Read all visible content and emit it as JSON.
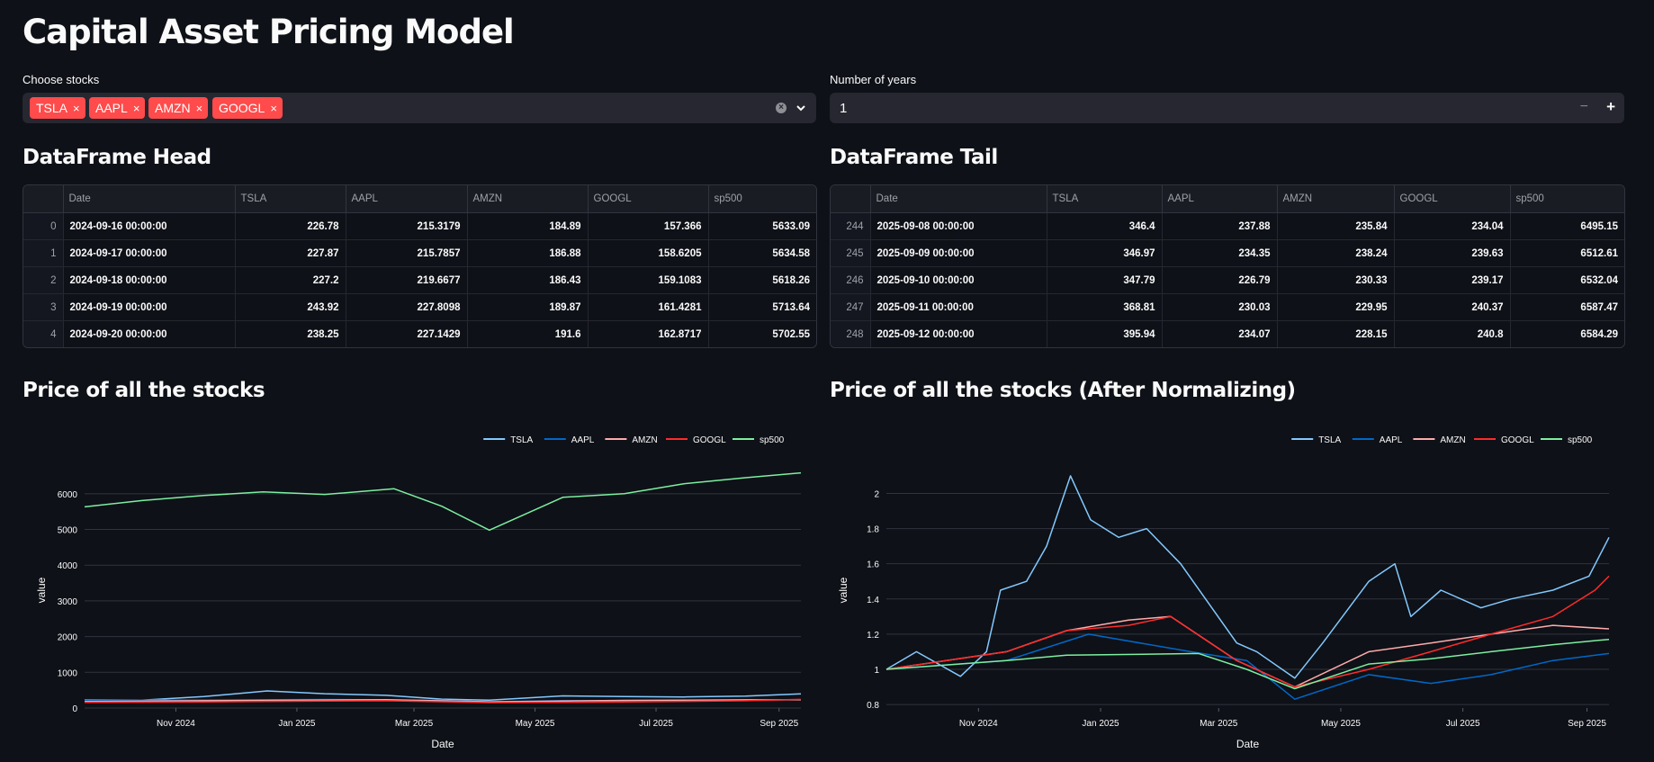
{
  "title": "Capital Asset Pricing Model",
  "stocks_field": {
    "label": "Choose stocks",
    "selected": [
      "TSLA",
      "AAPL",
      "AMZN",
      "GOOGL"
    ],
    "remove_glyph": "×"
  },
  "years_field": {
    "label": "Number of years",
    "value": "1",
    "minus": "−",
    "plus": "+"
  },
  "head_table": {
    "heading": "DataFrame Head",
    "columns": [
      "Date",
      "TSLA",
      "AAPL",
      "AMZN",
      "GOOGL",
      "sp500"
    ],
    "rows": [
      {
        "index": "0",
        "date": "2024-09-16 00:00:00",
        "tsla": "226.78",
        "aapl": "215.3179",
        "amzn": "184.89",
        "googl": "157.366",
        "sp500": "5633.09"
      },
      {
        "index": "1",
        "date": "2024-09-17 00:00:00",
        "tsla": "227.87",
        "aapl": "215.7857",
        "amzn": "186.88",
        "googl": "158.6205",
        "sp500": "5634.58"
      },
      {
        "index": "2",
        "date": "2024-09-18 00:00:00",
        "tsla": "227.2",
        "aapl": "219.6677",
        "amzn": "186.43",
        "googl": "159.1083",
        "sp500": "5618.26"
      },
      {
        "index": "3",
        "date": "2024-09-19 00:00:00",
        "tsla": "243.92",
        "aapl": "227.8098",
        "amzn": "189.87",
        "googl": "161.4281",
        "sp500": "5713.64"
      },
      {
        "index": "4",
        "date": "2024-09-20 00:00:00",
        "tsla": "238.25",
        "aapl": "227.1429",
        "amzn": "191.6",
        "googl": "162.8717",
        "sp500": "5702.55"
      }
    ]
  },
  "tail_table": {
    "heading": "DataFrame Tail",
    "columns": [
      "Date",
      "TSLA",
      "AAPL",
      "AMZN",
      "GOOGL",
      "sp500"
    ],
    "rows": [
      {
        "index": "244",
        "date": "2025-09-08 00:00:00",
        "tsla": "346.4",
        "aapl": "237.88",
        "amzn": "235.84",
        "googl": "234.04",
        "sp500": "6495.15"
      },
      {
        "index": "245",
        "date": "2025-09-09 00:00:00",
        "tsla": "346.97",
        "aapl": "234.35",
        "amzn": "238.24",
        "googl": "239.63",
        "sp500": "6512.61"
      },
      {
        "index": "246",
        "date": "2025-09-10 00:00:00",
        "tsla": "347.79",
        "aapl": "226.79",
        "amzn": "230.33",
        "googl": "239.17",
        "sp500": "6532.04"
      },
      {
        "index": "247",
        "date": "2025-09-11 00:00:00",
        "tsla": "368.81",
        "aapl": "230.03",
        "amzn": "229.95",
        "googl": "240.37",
        "sp500": "6587.47"
      },
      {
        "index": "248",
        "date": "2025-09-12 00:00:00",
        "tsla": "395.94",
        "aapl": "234.07",
        "amzn": "228.15",
        "googl": "240.8",
        "sp500": "6584.29"
      }
    ]
  },
  "colors": {
    "accent": "#ff4b4b",
    "TSLA": "#83c9ff",
    "AAPL": "#0068c9",
    "AMZN": "#ffabab",
    "GOOGL": "#ff2b2b",
    "sp500": "#7defa1"
  },
  "chart_data": [
    {
      "type": "line",
      "title": "Price of all the stocks",
      "xlabel": "Date",
      "ylabel": "value",
      "x_range": [
        "2024-09-16",
        "2025-09-12"
      ],
      "x_ticks": [
        "Nov 2024",
        "Jan 2025",
        "Mar 2025",
        "May 2025",
        "Jul 2025",
        "Sep 2025"
      ],
      "ylim": [
        0,
        6600
      ],
      "y_ticks": [
        "0",
        "1000",
        "2000",
        "3000",
        "4000",
        "5000",
        "6000"
      ],
      "legend": "top-right",
      "grid": true,
      "series": [
        {
          "name": "TSLA",
          "x": [
            "2024-09-16",
            "2024-10-15",
            "2024-11-15",
            "2024-12-17",
            "2025-01-15",
            "2025-02-15",
            "2025-03-15",
            "2025-04-08",
            "2025-05-15",
            "2025-06-15",
            "2025-07-15",
            "2025-08-15",
            "2025-09-12"
          ],
          "values": [
            227,
            220,
            320,
            479,
            400,
            355,
            250,
            222,
            340,
            320,
            310,
            335,
            396
          ]
        },
        {
          "name": "AAPL",
          "x": [
            "2024-09-16",
            "2024-11-15",
            "2025-01-15",
            "2025-03-15",
            "2025-04-08",
            "2025-05-15",
            "2025-07-15",
            "2025-09-12"
          ],
          "values": [
            215,
            225,
            240,
            215,
            175,
            210,
            212,
            234
          ]
        },
        {
          "name": "AMZN",
          "x": [
            "2024-09-16",
            "2024-11-15",
            "2025-01-15",
            "2025-02-15",
            "2025-04-08",
            "2025-06-15",
            "2025-08-15",
            "2025-09-12"
          ],
          "values": [
            185,
            205,
            225,
            235,
            175,
            215,
            230,
            228
          ]
        },
        {
          "name": "GOOGL",
          "x": [
            "2024-09-16",
            "2024-11-15",
            "2025-01-15",
            "2025-02-15",
            "2025-04-08",
            "2025-06-15",
            "2025-08-15",
            "2025-09-12"
          ],
          "values": [
            157,
            172,
            195,
            205,
            150,
            170,
            205,
            241
          ]
        },
        {
          "name": "sp500",
          "x": [
            "2024-09-16",
            "2024-10-15",
            "2024-11-15",
            "2024-12-15",
            "2025-01-15",
            "2025-02-19",
            "2025-03-15",
            "2025-04-08",
            "2025-05-15",
            "2025-06-15",
            "2025-07-15",
            "2025-08-15",
            "2025-09-12"
          ],
          "values": [
            5633,
            5810,
            5950,
            6050,
            5980,
            6140,
            5650,
            4980,
            5900,
            6000,
            6280,
            6450,
            6584
          ]
        }
      ]
    },
    {
      "type": "line",
      "title": "Price of all the stocks (After Normalizing)",
      "xlabel": "Date",
      "ylabel": "value",
      "x_range": [
        "2024-09-16",
        "2025-09-12"
      ],
      "x_ticks": [
        "Nov 2024",
        "Jan 2025",
        "Mar 2025",
        "May 2025",
        "Jul 2025",
        "Sep 2025"
      ],
      "ylim": [
        0.78,
        2.12
      ],
      "y_ticks": [
        "0.8",
        "1",
        "1.2",
        "1.4",
        "1.6",
        "1.8",
        "2"
      ],
      "legend": "top-right",
      "grid": true,
      "series": [
        {
          "name": "TSLA",
          "x": [
            "2024-09-16",
            "2024-10-01",
            "2024-10-23",
            "2024-11-05",
            "2024-11-12",
            "2024-11-25",
            "2024-12-05",
            "2024-12-17",
            "2024-12-27",
            "2025-01-10",
            "2025-01-24",
            "2025-02-10",
            "2025-03-10",
            "2025-03-20",
            "2025-04-08",
            "2025-04-22",
            "2025-05-15",
            "2025-05-28",
            "2025-06-05",
            "2025-06-20",
            "2025-07-10",
            "2025-07-25",
            "2025-08-15",
            "2025-09-02",
            "2025-09-12"
          ],
          "values": [
            1.0,
            1.1,
            0.96,
            1.1,
            1.45,
            1.5,
            1.7,
            2.1,
            1.85,
            1.75,
            1.8,
            1.6,
            1.15,
            1.1,
            0.95,
            1.15,
            1.5,
            1.6,
            1.3,
            1.45,
            1.35,
            1.4,
            1.45,
            1.53,
            1.75
          ]
        },
        {
          "name": "AAPL",
          "x": [
            "2024-09-16",
            "2024-11-15",
            "2024-12-26",
            "2025-02-15",
            "2025-03-15",
            "2025-04-08",
            "2025-05-15",
            "2025-06-15",
            "2025-07-15",
            "2025-08-15",
            "2025-09-12"
          ],
          "values": [
            1.0,
            1.05,
            1.2,
            1.1,
            1.05,
            0.83,
            0.97,
            0.92,
            0.97,
            1.05,
            1.09
          ]
        },
        {
          "name": "AMZN",
          "x": [
            "2024-09-16",
            "2024-11-15",
            "2024-12-15",
            "2025-01-15",
            "2025-02-05",
            "2025-03-10",
            "2025-04-08",
            "2025-05-15",
            "2025-06-15",
            "2025-07-15",
            "2025-08-15",
            "2025-09-12"
          ],
          "values": [
            1.0,
            1.1,
            1.22,
            1.28,
            1.3,
            1.05,
            0.9,
            1.1,
            1.15,
            1.2,
            1.25,
            1.23
          ]
        },
        {
          "name": "GOOGL",
          "x": [
            "2024-09-16",
            "2024-11-15",
            "2024-12-15",
            "2025-01-15",
            "2025-02-05",
            "2025-03-10",
            "2025-04-08",
            "2025-05-15",
            "2025-06-15",
            "2025-07-15",
            "2025-08-15",
            "2025-09-05",
            "2025-09-12"
          ],
          "values": [
            1.0,
            1.1,
            1.22,
            1.25,
            1.3,
            1.05,
            0.9,
            1.0,
            1.1,
            1.2,
            1.3,
            1.45,
            1.53
          ]
        },
        {
          "name": "sp500",
          "x": [
            "2024-09-16",
            "2024-11-15",
            "2024-12-15",
            "2025-02-19",
            "2025-03-15",
            "2025-04-08",
            "2025-05-15",
            "2025-06-15",
            "2025-07-15",
            "2025-08-15",
            "2025-09-12"
          ],
          "values": [
            1.0,
            1.05,
            1.08,
            1.09,
            1.0,
            0.89,
            1.03,
            1.06,
            1.1,
            1.14,
            1.17
          ]
        }
      ]
    }
  ]
}
